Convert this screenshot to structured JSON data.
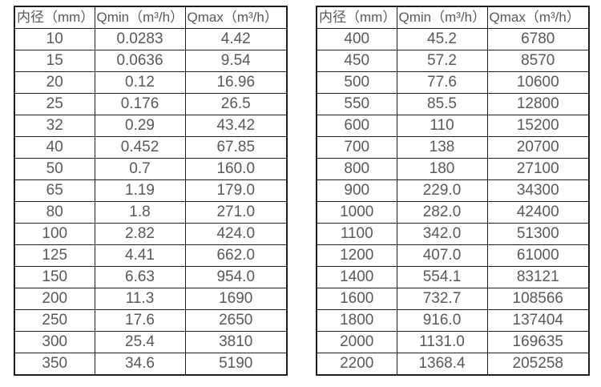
{
  "style": {
    "border_color": "#1f1f1f",
    "text_color": "#595959",
    "bg_color": "#ffffff"
  },
  "tables": [
    {
      "headers": [
        "内径（mm）",
        "Qmin（m³/h）",
        "Qmax（m³/h）"
      ],
      "rows": [
        [
          "10",
          "0.0283",
          "4.42"
        ],
        [
          "15",
          "0.0636",
          "9.54"
        ],
        [
          "20",
          "0.12",
          "16.96"
        ],
        [
          "25",
          "0.176",
          "26.5"
        ],
        [
          "32",
          "0.29",
          "43.42"
        ],
        [
          "40",
          "0.452",
          "67.85"
        ],
        [
          "50",
          "0.7",
          "160.0"
        ],
        [
          "65",
          "1.19",
          "179.0"
        ],
        [
          "80",
          "1.8",
          "271.0"
        ],
        [
          "100",
          "2.82",
          "424.0"
        ],
        [
          "125",
          "4.41",
          "662.0"
        ],
        [
          "150",
          "6.63",
          "954.0"
        ],
        [
          "200",
          "11.3",
          "1690"
        ],
        [
          "250",
          "17.6",
          "2650"
        ],
        [
          "300",
          "25.4",
          "3810"
        ],
        [
          "350",
          "34.6",
          "5190"
        ]
      ]
    },
    {
      "headers": [
        "内径（mm）",
        "Qmin（m³/h）",
        "Qmax（m³/h）"
      ],
      "rows": [
        [
          "400",
          "45.2",
          "6780"
        ],
        [
          "450",
          "57.2",
          "8570"
        ],
        [
          "500",
          "77.6",
          "10600"
        ],
        [
          "550",
          "85.5",
          "12800"
        ],
        [
          "600",
          "110",
          "15200"
        ],
        [
          "700",
          "138",
          "20700"
        ],
        [
          "800",
          "180",
          "27100"
        ],
        [
          "900",
          "229.0",
          "34300"
        ],
        [
          "1000",
          "282.0",
          "42400"
        ],
        [
          "1100",
          "342.0",
          "51300"
        ],
        [
          "1200",
          "407.0",
          "61000"
        ],
        [
          "1400",
          "554.1",
          "83121"
        ],
        [
          "1600",
          "732.7",
          "108566"
        ],
        [
          "1800",
          "916.0",
          "137404"
        ],
        [
          "2000",
          "1131.0",
          "169635"
        ],
        [
          "2200",
          "1368.4",
          "205258"
        ]
      ]
    }
  ]
}
